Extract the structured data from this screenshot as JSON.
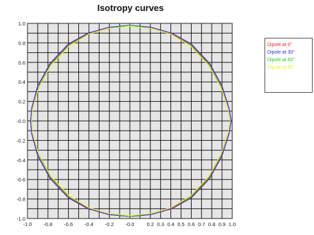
{
  "chart_data": {
    "type": "line",
    "title": "Isotropy curves",
    "xlabel": "",
    "ylabel": "",
    "xlim": [
      -1.0,
      1.0
    ],
    "ylim": [
      -1.0,
      1.0
    ],
    "grid": true,
    "legend_position": "right",
    "x_ticks": [
      "-1.0",
      "-0.8",
      "-0.6",
      "-0.4",
      "-0.2",
      "-0.0",
      "0.2",
      "0.3",
      "0.4",
      "0.5",
      "0.6",
      "0.7",
      "0.8",
      "0.9",
      "1.0"
    ],
    "x_tick_values": [
      -1.0,
      -0.8,
      -0.6,
      -0.4,
      -0.2,
      0.0,
      0.2,
      0.3,
      0.4,
      0.5,
      0.6,
      0.7,
      0.8,
      0.9,
      1.0
    ],
    "y_ticks": [
      "1.0",
      "0.8",
      "0.6",
      "0.4",
      "0.2",
      "-0.0",
      "-0.2",
      "-0.4",
      "-0.6",
      "-0.8",
      "-1.0"
    ],
    "y_tick_values": [
      1.0,
      0.8,
      0.6,
      0.4,
      0.2,
      0.0,
      -0.2,
      -0.4,
      -0.6,
      -0.8,
      -1.0
    ],
    "series": [
      {
        "name": "Dipole at 0°",
        "color": "#ff2020",
        "points": [
          [
            0.0,
            0.98
          ],
          [
            0.2,
            0.96
          ],
          [
            0.4,
            0.9
          ],
          [
            0.6,
            0.78
          ],
          [
            0.78,
            0.58
          ],
          [
            0.9,
            0.35
          ],
          [
            0.97,
            0.12
          ],
          [
            0.99,
            0.0
          ],
          [
            0.97,
            -0.12
          ],
          [
            0.9,
            -0.35
          ],
          [
            0.78,
            -0.58
          ],
          [
            0.6,
            -0.78
          ],
          [
            0.4,
            -0.9
          ],
          [
            0.2,
            -0.96
          ],
          [
            0.0,
            -0.98
          ],
          [
            -0.2,
            -0.96
          ],
          [
            -0.4,
            -0.9
          ],
          [
            -0.6,
            -0.78
          ],
          [
            -0.78,
            -0.58
          ],
          [
            -0.9,
            -0.35
          ],
          [
            -0.96,
            -0.12
          ],
          [
            -0.97,
            0.0
          ],
          [
            -0.96,
            0.12
          ],
          [
            -0.9,
            0.35
          ],
          [
            -0.78,
            0.58
          ],
          [
            -0.6,
            0.78
          ],
          [
            -0.4,
            0.9
          ],
          [
            -0.2,
            0.96
          ],
          [
            0.0,
            0.98
          ]
        ]
      },
      {
        "name": "Dipole at 30°",
        "color": "#2030ff",
        "points": [
          [
            0.0,
            0.98
          ],
          [
            0.21,
            0.96
          ],
          [
            0.41,
            0.9
          ],
          [
            0.6,
            0.79
          ],
          [
            0.78,
            0.59
          ],
          [
            0.9,
            0.36
          ],
          [
            0.97,
            0.13
          ],
          [
            0.99,
            0.0
          ],
          [
            0.97,
            -0.13
          ],
          [
            0.9,
            -0.36
          ],
          [
            0.78,
            -0.59
          ],
          [
            0.6,
            -0.79
          ],
          [
            0.41,
            -0.9
          ],
          [
            0.21,
            -0.96
          ],
          [
            0.0,
            -0.98
          ],
          [
            -0.21,
            -0.96
          ],
          [
            -0.41,
            -0.9
          ],
          [
            -0.6,
            -0.79
          ],
          [
            -0.78,
            -0.59
          ],
          [
            -0.9,
            -0.36
          ],
          [
            -0.96,
            -0.13
          ],
          [
            -0.97,
            0.0
          ],
          [
            -0.96,
            0.13
          ],
          [
            -0.9,
            0.36
          ],
          [
            -0.78,
            0.59
          ],
          [
            -0.6,
            0.79
          ],
          [
            -0.41,
            0.9
          ],
          [
            -0.21,
            0.96
          ],
          [
            0.0,
            0.98
          ]
        ]
      },
      {
        "name": "Dipole at 60°",
        "color": "#20d020",
        "points": [
          [
            0.0,
            0.98
          ],
          [
            0.2,
            0.95
          ],
          [
            0.4,
            0.89
          ],
          [
            0.59,
            0.78
          ],
          [
            0.77,
            0.58
          ],
          [
            0.89,
            0.35
          ],
          [
            0.96,
            0.12
          ],
          [
            0.98,
            0.0
          ],
          [
            0.96,
            -0.12
          ],
          [
            0.89,
            -0.35
          ],
          [
            0.77,
            -0.58
          ],
          [
            0.59,
            -0.78
          ],
          [
            0.4,
            -0.89
          ],
          [
            0.2,
            -0.95
          ],
          [
            0.0,
            -0.98
          ],
          [
            -0.2,
            -0.95
          ],
          [
            -0.4,
            -0.89
          ],
          [
            -0.59,
            -0.78
          ],
          [
            -0.77,
            -0.58
          ],
          [
            -0.89,
            -0.35
          ],
          [
            -0.95,
            -0.12
          ],
          [
            -0.96,
            0.0
          ],
          [
            -0.95,
            0.12
          ],
          [
            -0.89,
            0.35
          ],
          [
            -0.77,
            0.58
          ],
          [
            -0.59,
            0.78
          ],
          [
            -0.4,
            0.89
          ],
          [
            -0.2,
            0.95
          ],
          [
            0.0,
            0.98
          ]
        ]
      },
      {
        "name": "Dipole at 90°",
        "color": "#f0f020",
        "points": [
          [
            0.0,
            0.97
          ],
          [
            0.2,
            0.95
          ],
          [
            0.4,
            0.89
          ],
          [
            0.59,
            0.77
          ],
          [
            0.77,
            0.57
          ],
          [
            0.89,
            0.34
          ],
          [
            0.96,
            0.12
          ],
          [
            0.98,
            0.0
          ],
          [
            0.96,
            -0.12
          ],
          [
            0.89,
            -0.34
          ],
          [
            0.77,
            -0.57
          ],
          [
            0.59,
            -0.77
          ],
          [
            0.4,
            -0.89
          ],
          [
            0.2,
            -0.95
          ],
          [
            0.0,
            -0.97
          ],
          [
            -0.2,
            -0.95
          ],
          [
            -0.4,
            -0.89
          ],
          [
            -0.59,
            -0.77
          ],
          [
            -0.77,
            -0.57
          ],
          [
            -0.89,
            -0.34
          ],
          [
            -0.95,
            -0.12
          ],
          [
            -0.96,
            0.0
          ],
          [
            -0.95,
            0.12
          ],
          [
            -0.89,
            0.34
          ],
          [
            -0.77,
            0.57
          ],
          [
            -0.59,
            0.77
          ],
          [
            -0.4,
            0.89
          ],
          [
            -0.2,
            0.95
          ],
          [
            0.0,
            0.97
          ]
        ]
      }
    ]
  }
}
